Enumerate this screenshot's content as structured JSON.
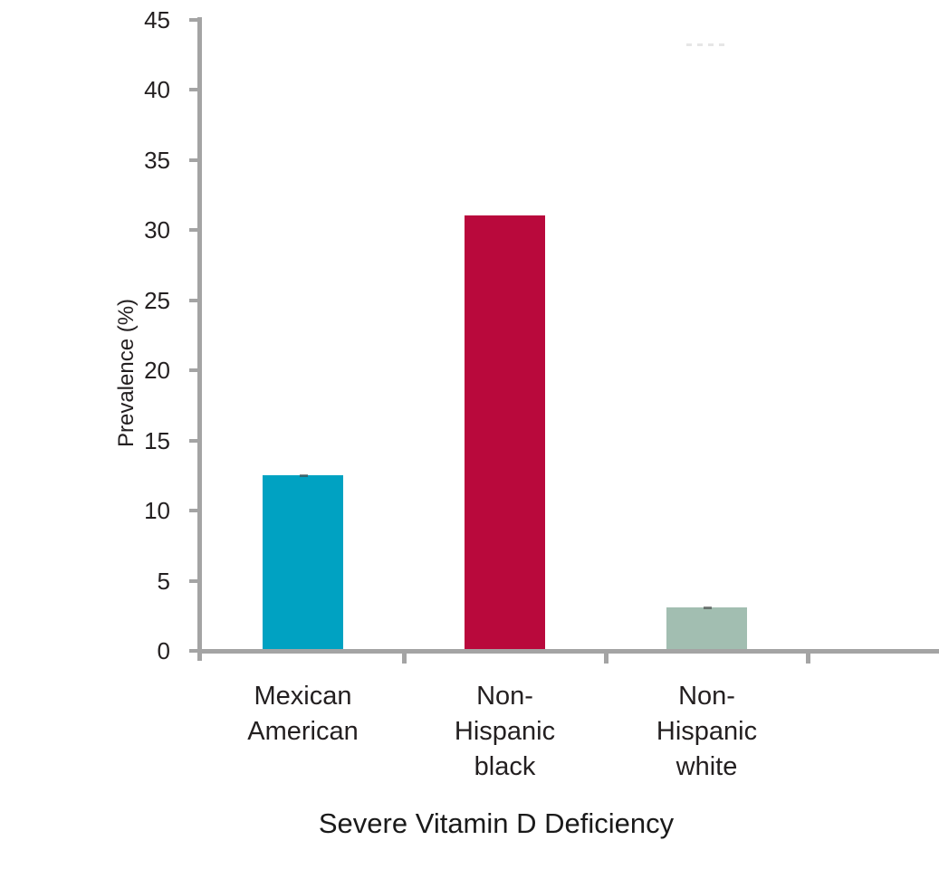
{
  "chart_data": {
    "type": "bar",
    "title": "Severe Vitamin D Deficiency",
    "ylabel": "Prevalence (%)",
    "xlabel": "",
    "categories": [
      "Mexican American",
      "Non-Hispanic black",
      "Non-Hispanic white"
    ],
    "category_lines": [
      [
        "Mexican",
        "American"
      ],
      [
        "Non-",
        "Hispanic",
        "black"
      ],
      [
        "Non-",
        "Hispanic",
        "white"
      ]
    ],
    "values": [
      12.4,
      30.9,
      3.0
    ],
    "bar_colors": [
      "#00A2C2",
      "#B9093C",
      "#A2BEB1"
    ],
    "bar_top_marks": [
      true,
      false,
      true
    ],
    "ylim": [
      0,
      45
    ],
    "yticks": [
      0,
      5,
      10,
      15,
      20,
      25,
      30,
      35,
      40,
      45
    ],
    "grid": false,
    "legend_position": "none",
    "axis_color": "#A4A4A4",
    "text_color": "#231F20"
  }
}
